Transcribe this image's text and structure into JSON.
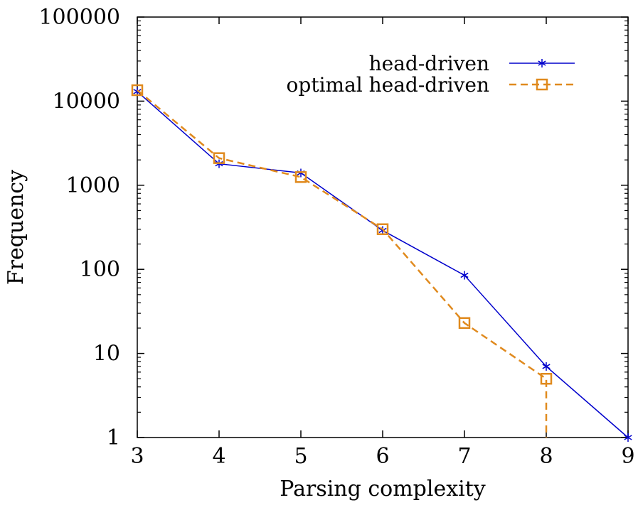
{
  "chart_data": {
    "type": "line",
    "title": "",
    "xlabel": "Parsing complexity",
    "ylabel": "Frequency",
    "x": [
      3,
      4,
      5,
      6,
      7,
      8,
      9
    ],
    "xlim": [
      3,
      9
    ],
    "ylim": [
      1,
      100000
    ],
    "yscale": "log",
    "x_ticks": [
      "3",
      "4",
      "5",
      "6",
      "7",
      "8",
      "9"
    ],
    "y_ticks": [
      "1",
      "10",
      "100",
      "1000",
      "10000",
      "100000"
    ],
    "grid": false,
    "legend_position": "top-right",
    "series": [
      {
        "name": "head-driven",
        "color": "#0000cc",
        "line": "solid",
        "marker": "star",
        "x": [
          3,
          4,
          5,
          6,
          7,
          8,
          9
        ],
        "values": [
          13000,
          1800,
          1400,
          290,
          85,
          7,
          1
        ]
      },
      {
        "name": "optimal head-driven",
        "color": "#e08a1e",
        "line": "dashed",
        "marker": "square",
        "x": [
          3,
          4,
          5,
          6,
          7,
          8,
          8
        ],
        "values": [
          13500,
          2100,
          1250,
          300,
          23,
          5,
          1
        ]
      }
    ]
  }
}
